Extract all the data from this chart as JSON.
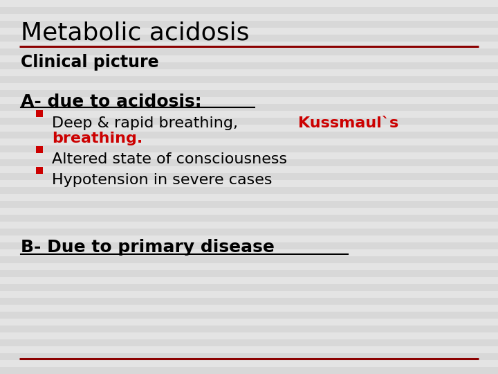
{
  "title": "Metabolic acidosis",
  "title_fontsize": 26,
  "title_color": "#000000",
  "separator_color": "#8B0000",
  "background_color": "#EBEBEB",
  "stripe_light": "#E4E4E4",
  "stripe_dark": "#D8D8D8",
  "subtitle": "Clinical picture",
  "subtitle_fontsize": 17,
  "section_a_label": "A- due to acidosis:",
  "section_a_fontsize": 18,
  "bullet_color": "#CC0000",
  "bullet_fontsize": 16,
  "line1_black": "Deep & rapid breathing, ",
  "line1_red": "Kussmaul`s",
  "line2_red": "breathing.",
  "line3_black": "Altered state of consciousness",
  "line4_black": "Hypotension in severe cases",
  "section_b_label": "B- Due to primary disease",
  "section_b_fontsize": 18,
  "bottom_line_color": "#8B0000"
}
